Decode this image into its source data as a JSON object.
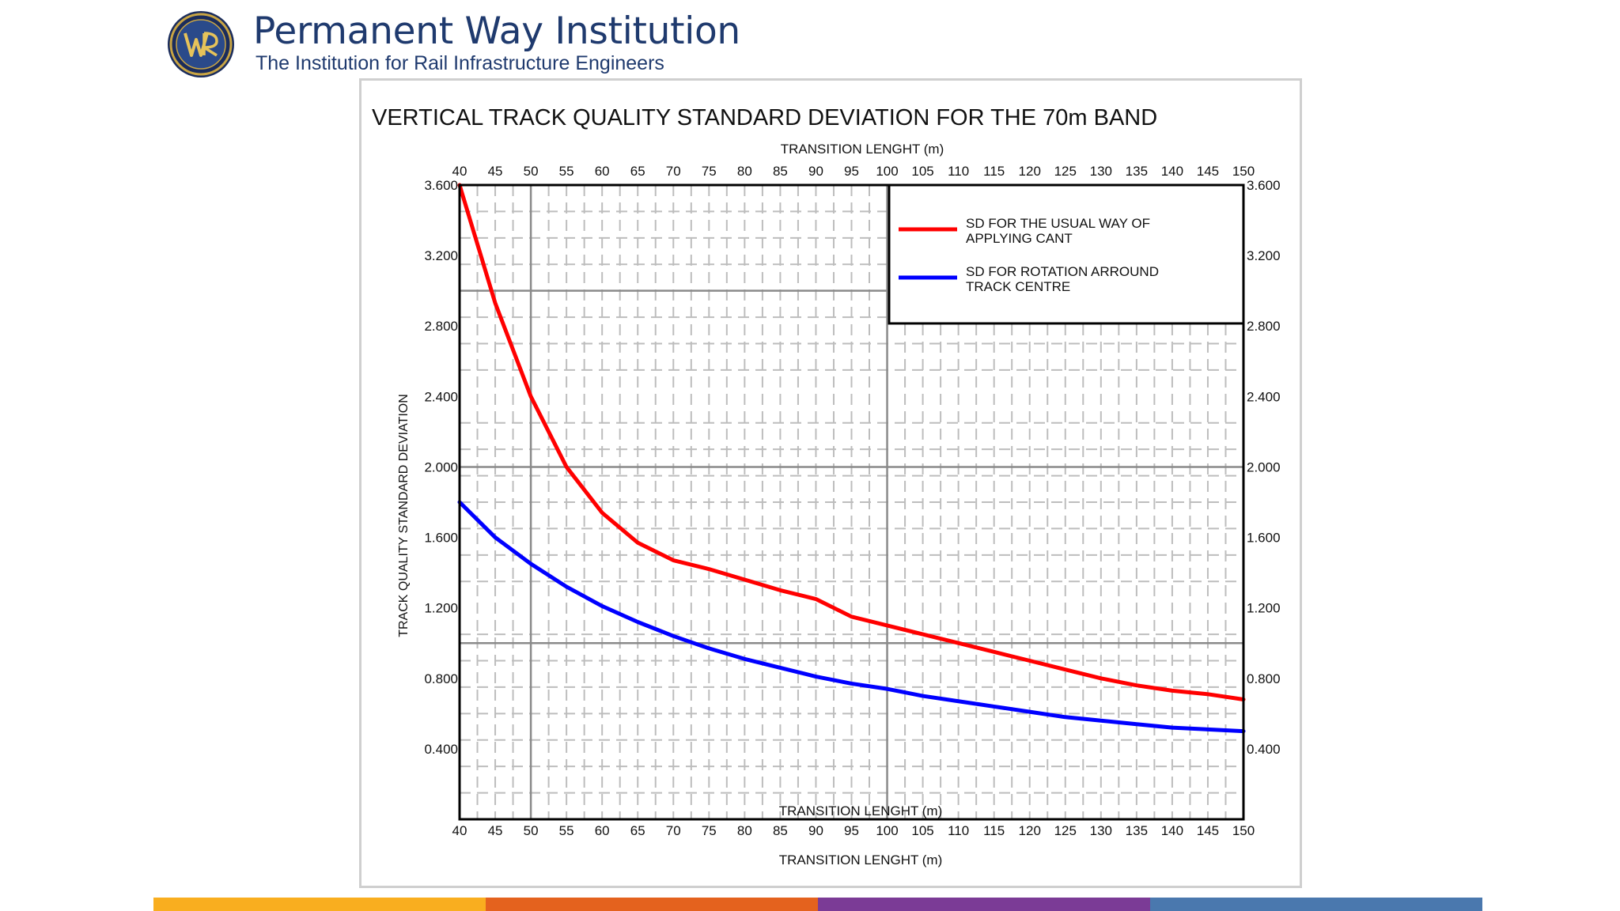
{
  "header": {
    "org_name": "Permanent Way Institution",
    "org_subtitle": "The Institution for Rail Infrastructure Engineers",
    "logo_icon": "pwi-crest-icon"
  },
  "footer": {
    "colors": [
      "#F9AE1F",
      "#E4621E",
      "#7B3B96",
      "#4A78AE"
    ]
  },
  "chart_data": {
    "type": "line",
    "title": "VERTICAL TRACK QUALITY STANDARD DEVIATION FOR THE 70m BAND",
    "xlabel": "TRANSITION LENGHT (m)",
    "xlabel_top": "TRANSITION LENGHT (m)",
    "xlabel_inner": "TRANSITION LENGHT (m)",
    "ylabel": "TRACK QUALITY STANDARD DEVIATION",
    "xlim": [
      40,
      150
    ],
    "ylim": [
      0.0,
      3.6
    ],
    "xticks": [
      "40",
      "45",
      "50",
      "55",
      "60",
      "65",
      "70",
      "75",
      "80",
      "85",
      "90",
      "95",
      "100",
      "105",
      "110",
      "115",
      "120",
      "125",
      "130",
      "135",
      "140",
      "145",
      "150"
    ],
    "yticks": [
      {
        "value": 0.4,
        "label": "0.400"
      },
      {
        "value": 0.8,
        "label": "0.800"
      },
      {
        "value": 1.2,
        "label": "1.200"
      },
      {
        "value": 1.6,
        "label": "1.600"
      },
      {
        "value": 2.0,
        "label": "2.000"
      },
      {
        "value": 2.4,
        "label": "2.400"
      },
      {
        "value": 2.8,
        "label": "2.800"
      },
      {
        "value": 3.2,
        "label": "3.200"
      },
      {
        "value": 3.6,
        "label": "3.600"
      }
    ],
    "grid": true,
    "legend_position": "top-right",
    "x": [
      40,
      45,
      50,
      55,
      60,
      65,
      70,
      75,
      80,
      85,
      90,
      95,
      100,
      105,
      110,
      115,
      120,
      125,
      130,
      135,
      140,
      145,
      150
    ],
    "series": [
      {
        "name": "SD FOR THE USUAL WAY OF APPLYING CANT",
        "legend_lines": [
          "SD FOR THE USUAL WAY OF",
          "APPLYING CANT"
        ],
        "color": "#FF0000",
        "values": [
          3.6,
          2.93,
          2.4,
          2.0,
          1.74,
          1.57,
          1.47,
          1.42,
          1.36,
          1.3,
          1.25,
          1.15,
          1.1,
          1.05,
          1.0,
          0.95,
          0.9,
          0.85,
          0.8,
          0.76,
          0.73,
          0.71,
          0.68
        ]
      },
      {
        "name": "SD FOR ROTATION ARROUND TRACK CENTRE",
        "legend_lines": [
          "SD FOR ROTATION ARROUND",
          "TRACK CENTRE"
        ],
        "color": "#0000FF",
        "values": [
          1.8,
          1.6,
          1.45,
          1.32,
          1.21,
          1.12,
          1.04,
          0.97,
          0.91,
          0.86,
          0.81,
          0.77,
          0.74,
          0.7,
          0.67,
          0.64,
          0.61,
          0.58,
          0.56,
          0.54,
          0.52,
          0.51,
          0.5
        ]
      }
    ]
  }
}
